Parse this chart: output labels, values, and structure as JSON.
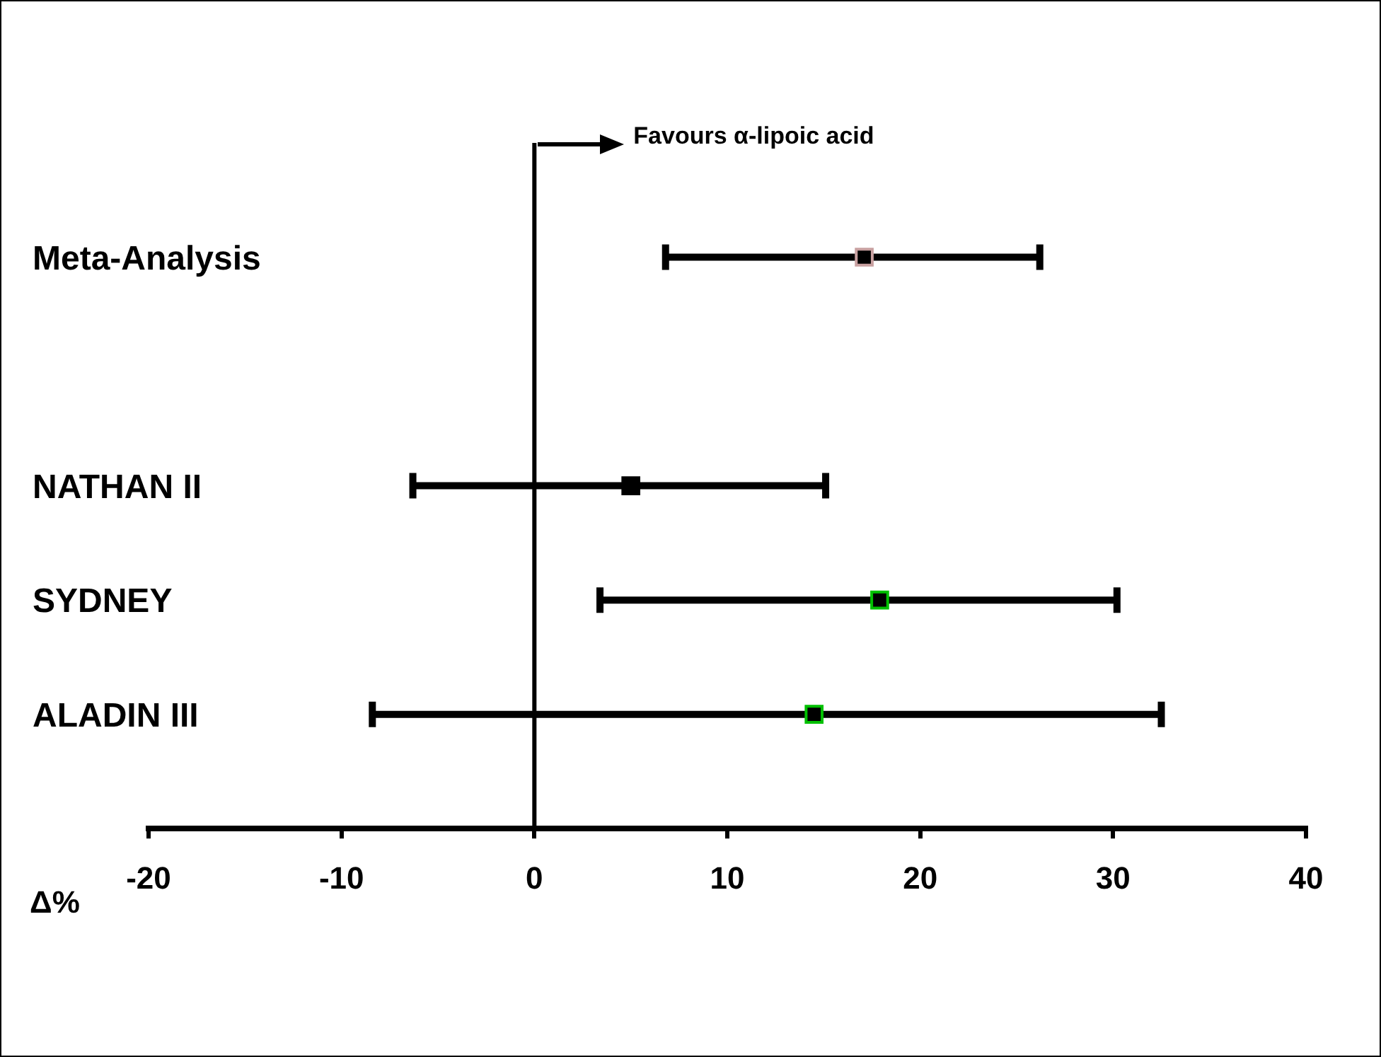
{
  "chart_data": {
    "type": "scatter",
    "orientation": "horizontal",
    "xlabel": "Δ%",
    "categories": [
      "Meta-Analysis",
      null,
      "NATHAN II",
      "SYDNEY",
      "ALADIN III"
    ],
    "values": [
      17.1,
      null,
      5.0,
      17.9,
      14.5
    ],
    "errors": [
      [
        6.8,
        26.2
      ],
      null,
      [
        -6.3,
        15.1
      ],
      [
        3.4,
        30.2
      ],
      [
        -8.4,
        32.5
      ]
    ],
    "color": "#000000",
    "colors": [
      "#c8a0a0",
      null,
      "#000000",
      "#00c000",
      "#00c000"
    ],
    "marker": "square",
    "xlim": [
      -20,
      40
    ],
    "xticks": [
      -20,
      -10,
      0,
      10,
      20,
      30,
      40
    ],
    "ref_lines": [
      {
        "axis": "x",
        "value": 0
      }
    ],
    "annotations": [
      "Favours α-lipoic acid"
    ],
    "grid": false,
    "legend": false
  }
}
